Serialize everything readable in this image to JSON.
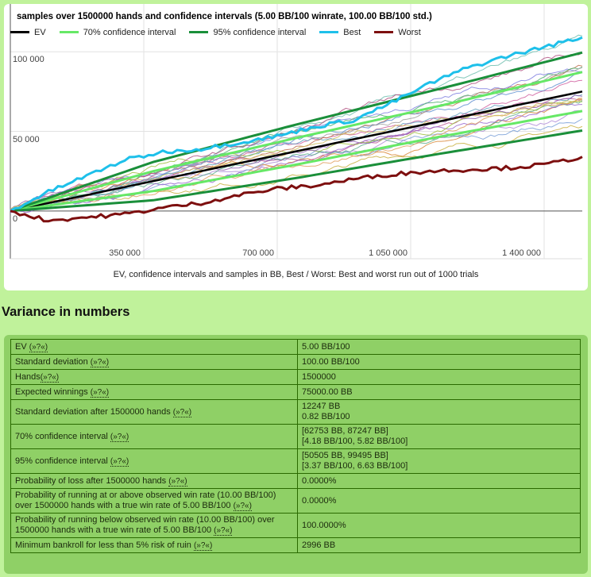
{
  "chart_data": {
    "type": "line",
    "title": "samples over 1500000 hands and confidence intervals (5.00 BB/100 winrate, 100.00 BB/100 std.)",
    "caption": "EV, confidence intervals and samples in BB, Best / Worst: Best and worst run out of 1000 trials",
    "xlabel": "",
    "ylabel": "",
    "xlim": [
      0,
      1500000
    ],
    "ylim": [
      -30000,
      130000
    ],
    "x_ticks": [
      {
        "value": 350000,
        "label": "350 000"
      },
      {
        "value": 700000,
        "label": "700 000"
      },
      {
        "value": 1050000,
        "label": "1 050 000"
      },
      {
        "value": 1400000,
        "label": "1 400 000"
      }
    ],
    "y_ticks": [
      {
        "value": 0,
        "label": "0"
      },
      {
        "value": 50000,
        "label": "50 000"
      },
      {
        "value": 100000,
        "label": "100 000"
      }
    ],
    "grid": true,
    "legend_position": "top-left",
    "legend": [
      {
        "name": "EV",
        "color": "#000000"
      },
      {
        "name": "70% confidence interval",
        "color": "#66e866"
      },
      {
        "name": "95% confidence interval",
        "color": "#1a8f3a"
      },
      {
        "name": "Best",
        "color": "#1ec0ea"
      },
      {
        "name": "Worst",
        "color": "#7d0f0f"
      }
    ],
    "series": [
      {
        "name": "EV",
        "color": "#000000",
        "x": [
          0,
          1500000
        ],
        "y": [
          0,
          75000
        ]
      },
      {
        "name": "70% upper",
        "color": "#66e866",
        "x": [
          0,
          375000,
          750000,
          1125000,
          1500000
        ],
        "y": [
          0,
          24990,
          45860,
          65930,
          87247
        ]
      },
      {
        "name": "70% lower",
        "color": "#66e866",
        "x": [
          0,
          375000,
          750000,
          1125000,
          1500000
        ],
        "y": [
          0,
          12510,
          29140,
          46570,
          62753
        ]
      },
      {
        "name": "95% upper",
        "color": "#1a8f3a",
        "x": [
          0,
          375000,
          750000,
          1125000,
          1500000
        ],
        "y": [
          0,
          30750,
          54300,
          76620,
          99495
        ]
      },
      {
        "name": "95% lower",
        "color": "#1a8f3a",
        "x": [
          0,
          375000,
          750000,
          1125000,
          1500000
        ],
        "y": [
          0,
          6750,
          20700,
          35880,
          50505
        ]
      },
      {
        "name": "Best",
        "color": "#1ec0ea",
        "x": [
          0,
          100000,
          200000,
          300000,
          400000,
          500000,
          600000,
          700000,
          800000,
          900000,
          1000000,
          1100000,
          1200000,
          1300000,
          1400000,
          1500000
        ],
        "y": [
          0,
          12000,
          22000,
          32000,
          37000,
          39000,
          43000,
          47000,
          53000,
          57000,
          68000,
          80000,
          90000,
          97000,
          103000,
          109000
        ]
      },
      {
        "name": "Worst",
        "color": "#7d0f0f",
        "x": [
          0,
          100000,
          200000,
          300000,
          400000,
          500000,
          600000,
          700000,
          800000,
          900000,
          1000000,
          1100000,
          1200000,
          1300000,
          1400000,
          1500000
        ],
        "y": [
          0,
          -6000,
          -4000,
          -2000,
          2000,
          5000,
          10000,
          14000,
          16000,
          20000,
          23000,
          25000,
          26000,
          27000,
          29000,
          34000
        ]
      }
    ]
  },
  "section": {
    "heading": "Variance in numbers"
  },
  "stats": {
    "help_label": "(»?«)",
    "rows": [
      {
        "label": "EV",
        "help": true,
        "nospace": false,
        "values": [
          "5.00 BB/100"
        ]
      },
      {
        "label": "Standard deviation",
        "help": true,
        "nospace": false,
        "values": [
          "100.00 BB/100"
        ]
      },
      {
        "label": "Hands",
        "help": true,
        "nospace": true,
        "values": [
          "1500000"
        ]
      },
      {
        "label": "Expected winnings",
        "help": true,
        "nospace": false,
        "values": [
          "75000.00 BB"
        ]
      },
      {
        "label": "Standard deviation after 1500000 hands",
        "help": true,
        "nospace": false,
        "values": [
          "12247 BB",
          "0.82 BB/100"
        ]
      },
      {
        "label": "70% confidence interval",
        "help": true,
        "nospace": false,
        "values": [
          "[62753 BB, 87247 BB]",
          "[4.18 BB/100, 5.82 BB/100]"
        ]
      },
      {
        "label": "95% confidence interval",
        "help": true,
        "nospace": false,
        "values": [
          "[50505 BB, 99495 BB]",
          "[3.37 BB/100, 6.63 BB/100]"
        ]
      },
      {
        "label": "Probability of loss after 1500000 hands",
        "help": true,
        "nospace": false,
        "values": [
          "0.0000%"
        ]
      },
      {
        "label": "Probability of running at or above observed win rate (10.00 BB/100) over 1500000 hands with a true win rate of 5.00 BB/100",
        "help": true,
        "nospace": false,
        "values": [
          "0.0000%"
        ]
      },
      {
        "label": "Probability of running below observed win rate (10.00 BB/100) over 1500000 hands with a true win rate of 5.00 BB/100",
        "help": true,
        "nospace": false,
        "values": [
          "100.0000%"
        ]
      },
      {
        "label": "Minimum bankroll for less than 5% risk of ruin",
        "help": true,
        "nospace": false,
        "values": [
          "2996 BB"
        ]
      }
    ]
  }
}
